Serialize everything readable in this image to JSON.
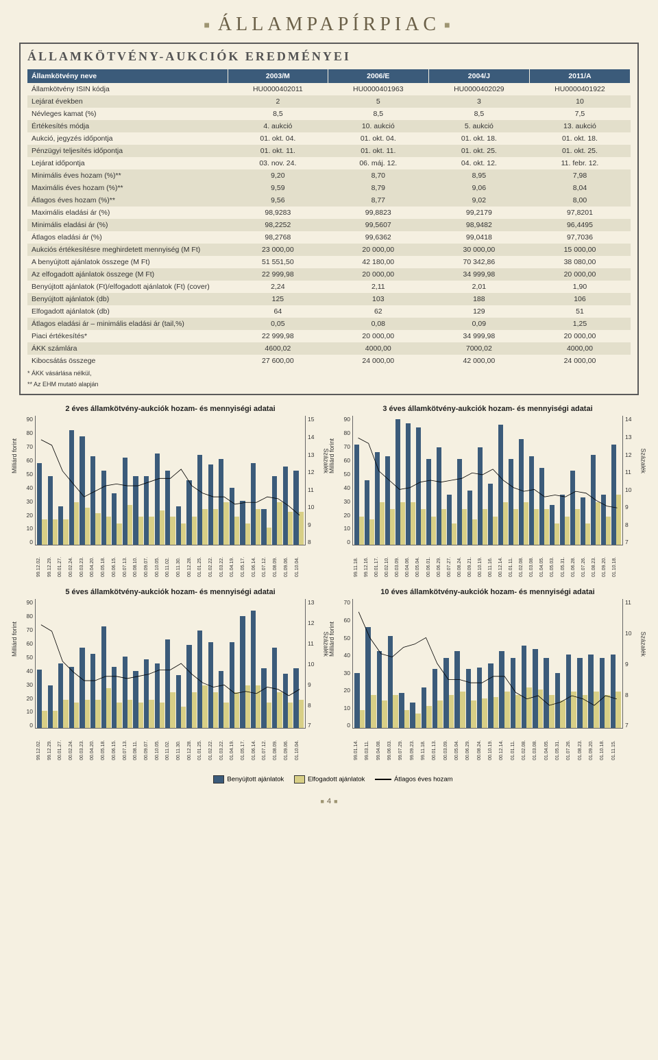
{
  "page_title": "ÁLLAMPAPÍRPIAC",
  "section_title": "ÁLLAMKÖTVÉNY-AUKCIÓK EREDMÉNYEI",
  "columns": [
    "Államkötvény neve",
    "2003/M",
    "2006/E",
    "2004/J",
    "2011/A"
  ],
  "rows": [
    {
      "band": false,
      "r": [
        "Államkötvény ISIN kódja",
        "HU0000402011",
        "HU0000401963",
        "HU0000402029",
        "HU0000401922"
      ]
    },
    {
      "band": true,
      "r": [
        "Lejárat években",
        "2",
        "5",
        "3",
        "10"
      ]
    },
    {
      "band": false,
      "r": [
        "Névleges kamat (%)",
        "8,5",
        "8,5",
        "8,5",
        "7,5"
      ]
    },
    {
      "band": true,
      "r": [
        "Értékesítés módja",
        "4. aukció",
        "10. aukció",
        "5. aukció",
        "13. aukció"
      ]
    },
    {
      "band": false,
      "r": [
        "Aukció, jegyzés időpontja",
        "01. okt. 04.",
        "01. okt. 04.",
        "01. okt. 18.",
        "01. okt. 18."
      ]
    },
    {
      "band": true,
      "r": [
        "Pénzügyi teljesítés időpontja",
        "01. okt. 11.",
        "01. okt. 11.",
        "01. okt. 25.",
        "01. okt. 25."
      ]
    },
    {
      "band": false,
      "r": [
        "Lejárat időpontja",
        "03. nov. 24.",
        "06. máj. 12.",
        "04. okt. 12.",
        "11. febr. 12."
      ]
    },
    {
      "band": true,
      "r": [
        "Minimális éves hozam (%)**",
        "9,20",
        "8,70",
        "8,95",
        "7,98"
      ]
    },
    {
      "band": true,
      "r": [
        "Maximális éves hozam (%)**",
        "9,59",
        "8,79",
        "9,06",
        "8,04"
      ]
    },
    {
      "band": true,
      "r": [
        "Átlagos éves hozam (%)**",
        "9,56",
        "8,77",
        "9,02",
        "8,00"
      ]
    },
    {
      "band": false,
      "r": [
        "Maximális eladási ár (%)",
        "98,9283",
        "99,8823",
        "99,2179",
        "97,8201"
      ]
    },
    {
      "band": true,
      "r": [
        "Minimális eladási ár (%)",
        "98,2252",
        "99,5607",
        "98,9482",
        "96,4495"
      ]
    },
    {
      "band": false,
      "r": [
        "Átlagos eladási ár (%)",
        "98,2768",
        "99,6362",
        "99,0418",
        "97,7036"
      ]
    },
    {
      "band": true,
      "r": [
        "Aukciós értékesítésre meghirdetett mennyiség (M Ft)",
        "23 000,00",
        "20 000,00",
        "30 000,00",
        "15 000,00"
      ]
    },
    {
      "band": false,
      "r": [
        "A benyújtott ajánlatok összege (M Ft)",
        "51 551,50",
        "42 180,00",
        "70 342,86",
        "38 080,00"
      ]
    },
    {
      "band": true,
      "r": [
        "Az elfogadott ajánlatok összege (M Ft)",
        "22 999,98",
        "20 000,00",
        "34 999,98",
        "20 000,00"
      ]
    },
    {
      "band": false,
      "r": [
        "Benyújtott ajánlatok (Ft)/elfogadott ajánlatok (Ft) (cover)",
        "2,24",
        "2,11",
        "2,01",
        "1,90"
      ]
    },
    {
      "band": true,
      "r": [
        "Benyújtott ajánlatok (db)",
        "125",
        "103",
        "188",
        "106"
      ]
    },
    {
      "band": false,
      "r": [
        "Elfogadott ajánlatok (db)",
        "64",
        "62",
        "129",
        "51"
      ]
    },
    {
      "band": true,
      "r": [
        "Átlagos eladási ár – minimális eladási ár (tail,%)",
        "0,05",
        "0,08",
        "0,09",
        "1,25"
      ]
    },
    {
      "band": false,
      "r": [
        "Piaci értékesítés*",
        "22 999,98",
        "20 000,00",
        "34 999,98",
        "20 000,00"
      ]
    },
    {
      "band": true,
      "r": [
        "ÁKK számlára",
        "4600,02",
        "4000,00",
        "7000,02",
        "4000,00"
      ]
    },
    {
      "band": false,
      "r": [
        "Kibocsátás összege",
        "27 600,00",
        "24 000,00",
        "42 000,00",
        "24 000,00"
      ]
    }
  ],
  "footnote1": "*   ÁKK vásárlása nélkül,",
  "footnote2": "**  Az EHM mutató alapján",
  "y_label_left": "Milliárd forint",
  "y_label_right": "Százalék",
  "legend": {
    "submitted": "Benyújtott ajánlatok",
    "accepted": "Elfogadott ajánlatok",
    "line": "Átlagos éves hozam"
  },
  "colors": {
    "submitted": "#3b5b7a",
    "accepted": "#d8cf86",
    "line": "#000000",
    "band": "#e3dfcb",
    "bg": "#f5f0e1"
  },
  "page_number": "4",
  "charts": [
    {
      "title": "2 éves államkötvény-aukciók hozam- és mennyiségi adatai",
      "yl": {
        "min": 0,
        "max": 90,
        "step": 10
      },
      "yr": {
        "min": 8,
        "max": 15,
        "step": 1
      },
      "x": [
        "99.12.02.",
        "99.12.29.",
        "00.01.27.",
        "00.02.24.",
        "00.03.23.",
        "00.04.20.",
        "00.05.18.",
        "00.06.15.",
        "00.07.13.",
        "00.08.10.",
        "00.09.07.",
        "00.10.05.",
        "00.11.02.",
        "00.11.30.",
        "00.12.28.",
        "01.01.25.",
        "01.02.22.",
        "01.03.22.",
        "01.04.19.",
        "01.05.17.",
        "01.06.14.",
        "01.07.12.",
        "01.08.09.",
        "01.09.06.",
        "01.10.04."
      ],
      "submitted": [
        57,
        48,
        27,
        80,
        76,
        62,
        52,
        36,
        61,
        48,
        48,
        64,
        52,
        27,
        45,
        63,
        56,
        60,
        40,
        31,
        57,
        25,
        48,
        55,
        52
      ],
      "accepted": [
        18,
        18,
        18,
        30,
        26,
        22,
        20,
        15,
        28,
        20,
        20,
        24,
        20,
        15,
        20,
        25,
        25,
        30,
        20,
        15,
        25,
        12,
        30,
        23,
        23
      ],
      "yield": [
        13.7,
        13.4,
        12.0,
        11.3,
        10.6,
        10.9,
        11.2,
        11.3,
        11.2,
        11.2,
        11.4,
        11.6,
        11.6,
        12.1,
        11.2,
        10.8,
        10.6,
        10.6,
        10.2,
        10.3,
        10.3,
        10.6,
        10.5,
        10.1,
        9.6
      ]
    },
    {
      "title": "3 éves államkötvény-aukciók hozam- és mennyiségi adatai",
      "yl": {
        "min": 0,
        "max": 90,
        "step": 10
      },
      "yr": {
        "min": 7,
        "max": 14,
        "step": 1
      },
      "x": [
        "99.11.18.",
        "99.12.16.",
        "00.01.17.",
        "00.02.10.",
        "00.03.09.",
        "00.04.06.",
        "00.05.04.",
        "00.06.01.",
        "00.06.29.",
        "00.07.27.",
        "00.08.24.",
        "00.09.21.",
        "00.10.19.",
        "00.11.16.",
        "00.12.14.",
        "01.01.11.",
        "01.02.08.",
        "01.03.08.",
        "01.04.05.",
        "01.05.03.",
        "01.05.31.",
        "01.06.28.",
        "01.07.26.",
        "01.08.23.",
        "01.09.20.",
        "01.10.18."
      ],
      "submitted": [
        70,
        45,
        65,
        62,
        88,
        85,
        82,
        60,
        68,
        35,
        60,
        38,
        68,
        43,
        84,
        60,
        74,
        62,
        54,
        28,
        35,
        52,
        33,
        63,
        35,
        70
      ],
      "accepted": [
        20,
        18,
        30,
        25,
        30,
        30,
        25,
        20,
        25,
        15,
        25,
        18,
        25,
        20,
        30,
        25,
        30,
        25,
        25,
        15,
        20,
        25,
        15,
        30,
        20,
        35
      ],
      "yield": [
        12.8,
        12.5,
        11.0,
        10.5,
        10.0,
        10.1,
        10.4,
        10.5,
        10.4,
        10.5,
        10.6,
        10.9,
        10.8,
        11.1,
        10.5,
        10.1,
        9.9,
        10.0,
        9.6,
        9.7,
        9.6,
        9.9,
        9.8,
        9.4,
        9.1,
        9.0
      ]
    },
    {
      "title": "5 éves államkötvény-aukciók hozam- és mennyiségi adatai",
      "yl": {
        "min": 0,
        "max": 90,
        "step": 10
      },
      "yr": {
        "min": 7,
        "max": 13,
        "step": 1
      },
      "x": [
        "99.12.02.",
        "99.12.29.",
        "00.01.27.",
        "00.02.24.",
        "00.03.23.",
        "00.04.20.",
        "00.05.18.",
        "00.06.15.",
        "00.07.13.",
        "00.08.11.",
        "00.09.07.",
        "00.10.05.",
        "00.11.02.",
        "00.11.30.",
        "00.12.28.",
        "01.01.25.",
        "01.02.22.",
        "01.03.22.",
        "01.04.19.",
        "01.05.17.",
        "01.06.14.",
        "01.07.12.",
        "01.08.09.",
        "01.09.06.",
        "01.10.04."
      ],
      "submitted": [
        41,
        30,
        45,
        43,
        56,
        52,
        71,
        43,
        50,
        40,
        48,
        45,
        62,
        37,
        58,
        68,
        60,
        40,
        60,
        78,
        82,
        42,
        56,
        38,
        42
      ],
      "accepted": [
        12,
        12,
        20,
        18,
        20,
        20,
        28,
        18,
        20,
        18,
        20,
        18,
        25,
        15,
        25,
        30,
        25,
        18,
        25,
        30,
        30,
        18,
        25,
        18,
        20
      ],
      "yield": [
        11.8,
        11.5,
        10.1,
        9.6,
        9.2,
        9.2,
        9.4,
        9.4,
        9.3,
        9.4,
        9.5,
        9.7,
        9.7,
        10.0,
        9.5,
        9.1,
        8.9,
        9.0,
        8.6,
        8.7,
        8.6,
        8.9,
        8.8,
        8.5,
        8.8
      ]
    },
    {
      "title": "10 éves államkötvény-aukciók hozam- és mennyiségi adatai",
      "yl": {
        "min": 0,
        "max": 70,
        "step": 10
      },
      "yr": {
        "min": 7,
        "max": 11,
        "step": 1
      },
      "x": [
        "99.01.14.",
        "99.03.11.",
        "99.04.08.",
        "99.06.03.",
        "99.07.29.",
        "99.09.23.",
        "99.11.18.",
        "00.01.13.",
        "00.03.09.",
        "00.05.04.",
        "00.06.29.",
        "00.08.24.",
        "00.10.19.",
        "00.12.14.",
        "01.01.11.",
        "01.02.08.",
        "01.03.08.",
        "01.04.05.",
        "01.05.31.",
        "01.07.26.",
        "01.08.23.",
        "01.09.20.",
        "01.10.18.",
        "01.11.15."
      ],
      "submitted": [
        30,
        55,
        42,
        50,
        19,
        14,
        22,
        32,
        38,
        42,
        32,
        33,
        35,
        42,
        38,
        45,
        43,
        38,
        30,
        40,
        38,
        40,
        38,
        40
      ],
      "accepted": [
        10,
        18,
        15,
        18,
        10,
        8,
        12,
        15,
        18,
        20,
        15,
        16,
        17,
        20,
        18,
        22,
        21,
        18,
        15,
        20,
        18,
        20,
        18,
        20
      ],
      "yield": [
        10.6,
        9.8,
        9.3,
        9.2,
        9.5,
        9.6,
        9.8,
        9.0,
        8.5,
        8.5,
        8.4,
        8.4,
        8.6,
        8.6,
        8.1,
        7.9,
        8.0,
        7.7,
        7.8,
        8.0,
        7.9,
        7.7,
        8.0,
        7.9
      ]
    }
  ]
}
